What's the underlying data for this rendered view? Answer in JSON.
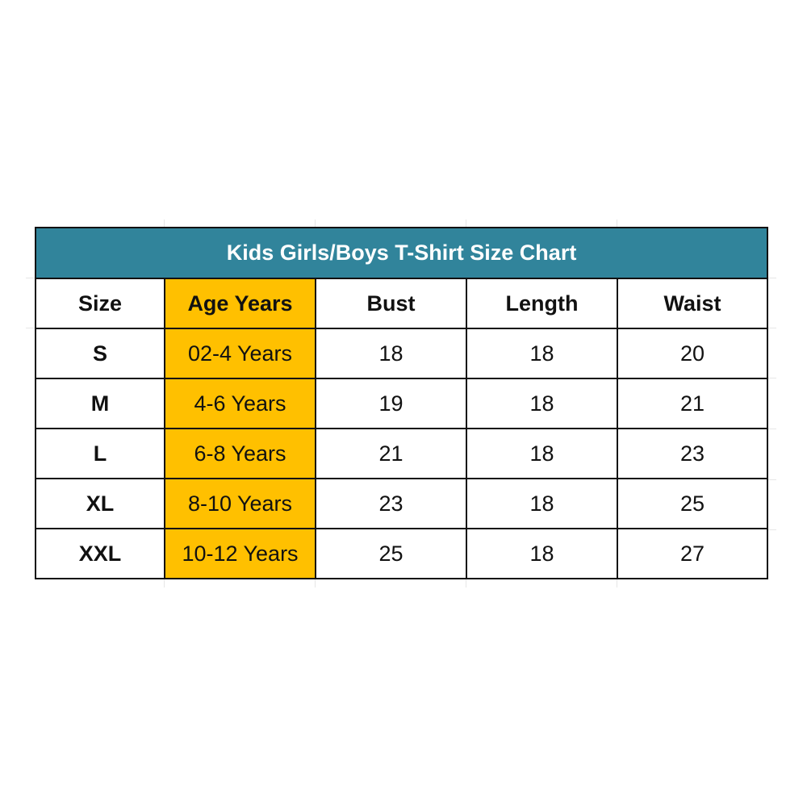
{
  "title": "Kids Girls/Boys T-Shirt Size Chart",
  "colors": {
    "title_bg": "#31849b",
    "age_column_bg": "#ffc000"
  },
  "headers": [
    "Size",
    "Age Years",
    "Bust",
    "Length",
    "Waist"
  ],
  "rows": [
    [
      "S",
      "02-4 Years",
      "18",
      "18",
      "20"
    ],
    [
      "M",
      "4-6 Years",
      "19",
      "18",
      "21"
    ],
    [
      "L",
      "6-8 Years",
      "21",
      "18",
      "23"
    ],
    [
      "XL",
      "8-10 Years",
      "23",
      "18",
      "25"
    ],
    [
      "XXL",
      "10-12 Years",
      "25",
      "18",
      "27"
    ]
  ]
}
